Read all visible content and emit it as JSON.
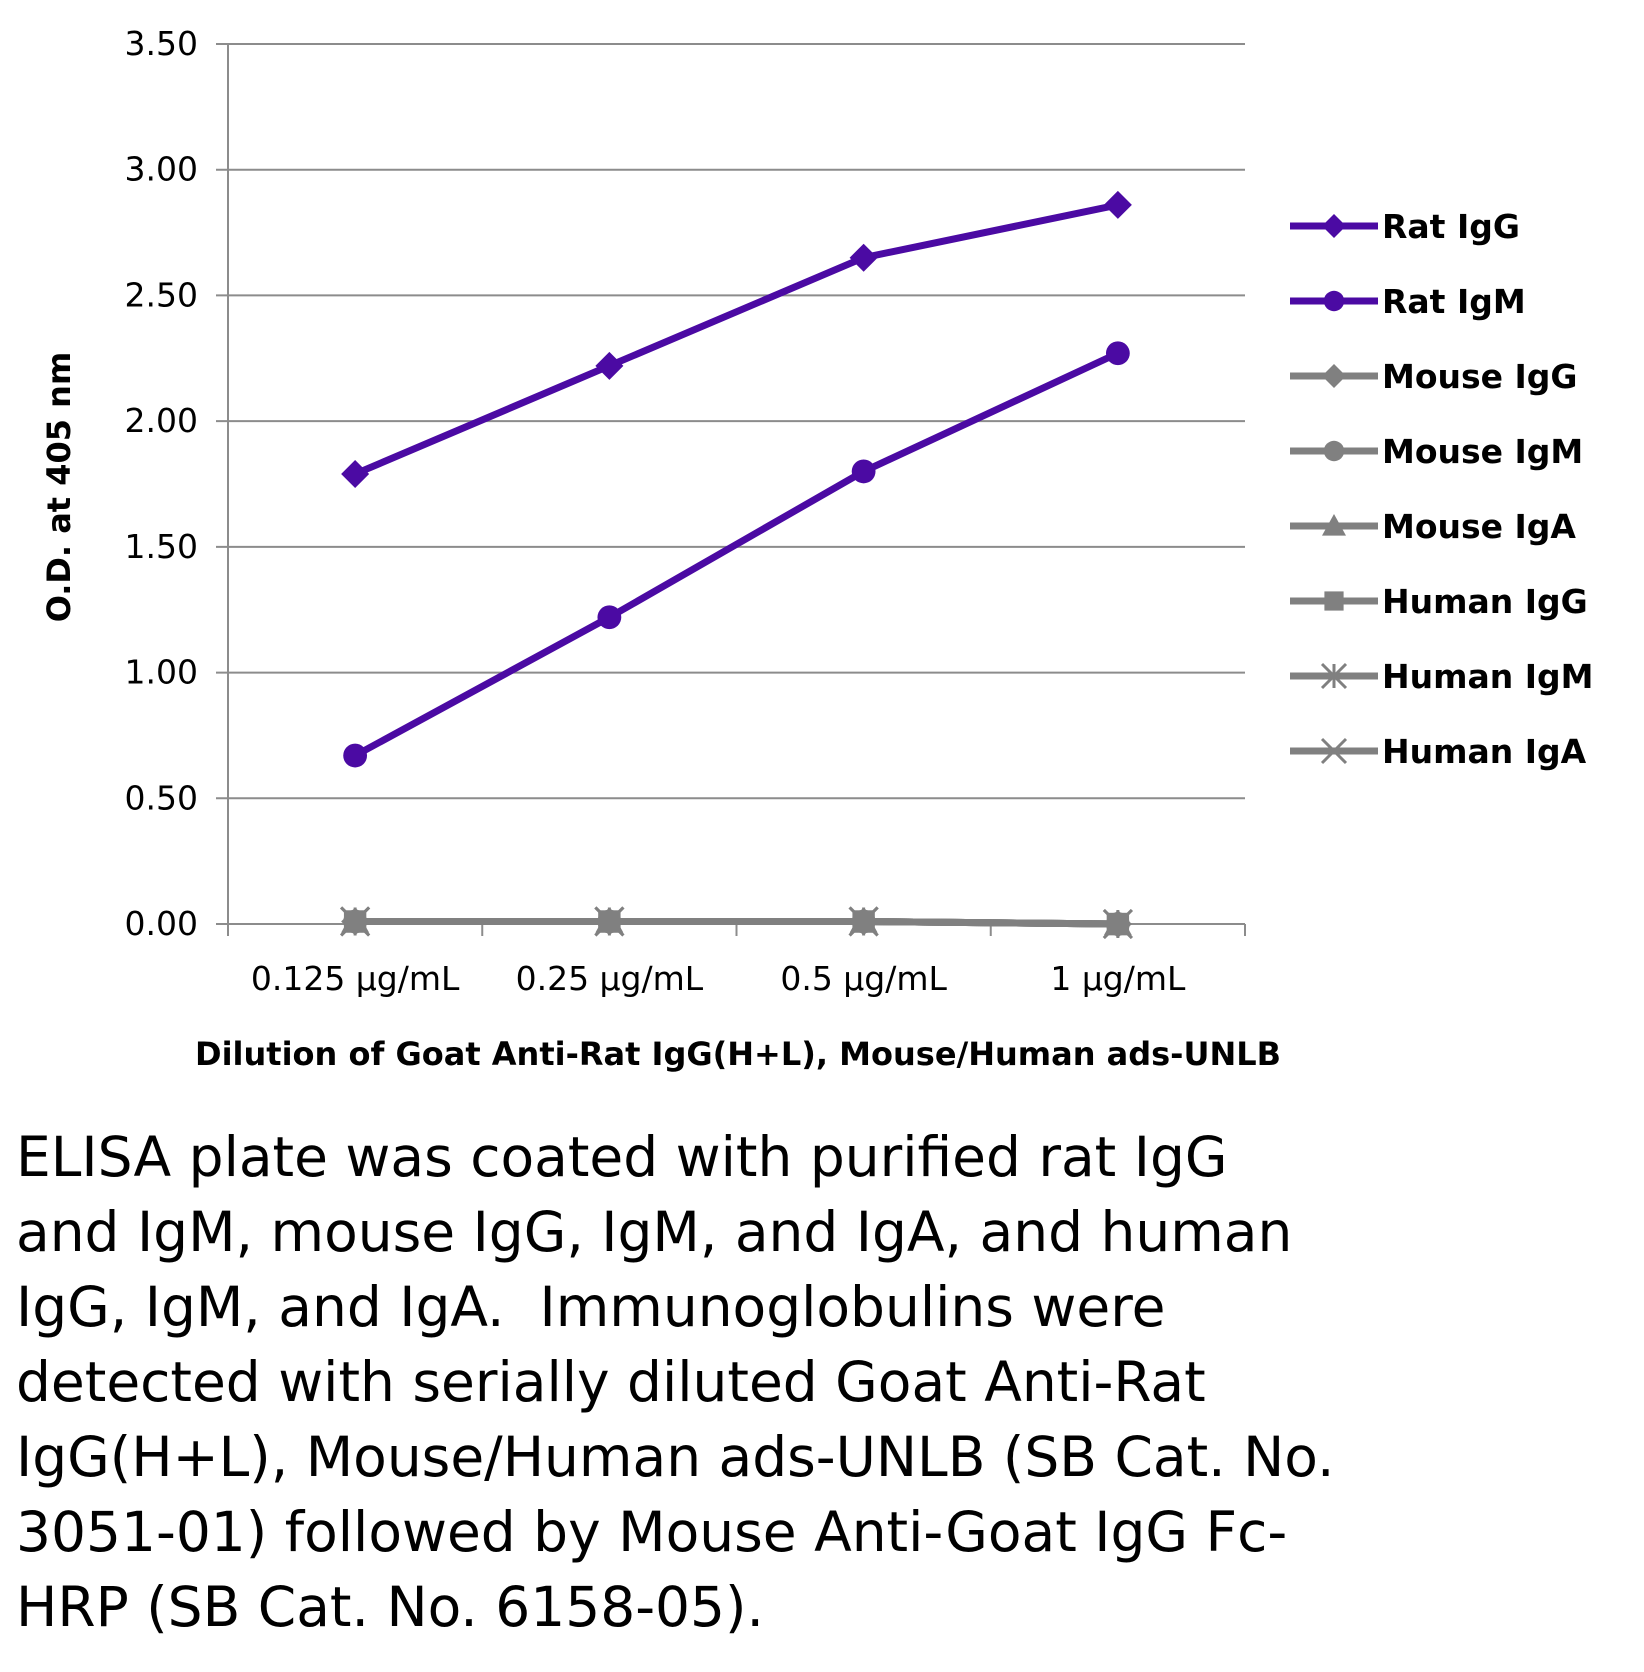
{
  "chart_data": {
    "type": "line",
    "title": "",
    "xlabel": "Dilution of Goat Anti-Rat IgG(H+L), Mouse/Human ads-UNLB",
    "ylabel": "O.D. at 405 nm",
    "categories": [
      "0.125 µg/mL",
      "0.25 µg/mL",
      "0.5 µg/mL",
      "1 µg/mL"
    ],
    "ylim": [
      0,
      3.5
    ],
    "yticks": [
      "0.00",
      "0.50",
      "1.00",
      "1.50",
      "2.00",
      "2.50",
      "3.00",
      "3.50"
    ],
    "ytick_values": [
      0,
      0.5,
      1.0,
      1.5,
      2.0,
      2.5,
      3.0,
      3.5
    ],
    "grid": true,
    "legend_position": "right",
    "series": [
      {
        "name": "Rat IgG",
        "values": [
          1.79,
          2.22,
          2.65,
          2.86
        ],
        "color": "#4b0aa3",
        "marker": "diamond"
      },
      {
        "name": "Rat IgM",
        "values": [
          0.67,
          1.22,
          1.8,
          2.27
        ],
        "color": "#4b0aa3",
        "marker": "circle"
      },
      {
        "name": "Mouse IgG",
        "values": [
          0.01,
          0.01,
          0.01,
          0.0
        ],
        "color": "#808080",
        "marker": "diamond"
      },
      {
        "name": "Mouse IgM",
        "values": [
          0.01,
          0.01,
          0.01,
          0.0
        ],
        "color": "#808080",
        "marker": "circle"
      },
      {
        "name": "Mouse IgA",
        "values": [
          0.01,
          0.01,
          0.01,
          0.0
        ],
        "color": "#808080",
        "marker": "triangle"
      },
      {
        "name": "Human IgG",
        "values": [
          0.01,
          0.01,
          0.01,
          0.0
        ],
        "color": "#808080",
        "marker": "square"
      },
      {
        "name": "Human IgM",
        "values": [
          0.01,
          0.01,
          0.01,
          0.0
        ],
        "color": "#808080",
        "marker": "asterisk"
      },
      {
        "name": "Human IgA",
        "values": [
          0.01,
          0.01,
          0.01,
          0.0
        ],
        "color": "#808080",
        "marker": "x"
      }
    ]
  },
  "caption": "ELISA plate was coated with purified rat IgG\nand IgM, mouse IgG, IgM, and IgA, and human\nIgG, IgM, and IgA.  Immunoglobulins were\ndetected with serially diluted Goat Anti-Rat\nIgG(H+L), Mouse/Human ads-UNLB (SB Cat. No.\n3051-01) followed by Mouse Anti-Goat IgG Fc-\nHRP (SB Cat. No. 6158-05)."
}
